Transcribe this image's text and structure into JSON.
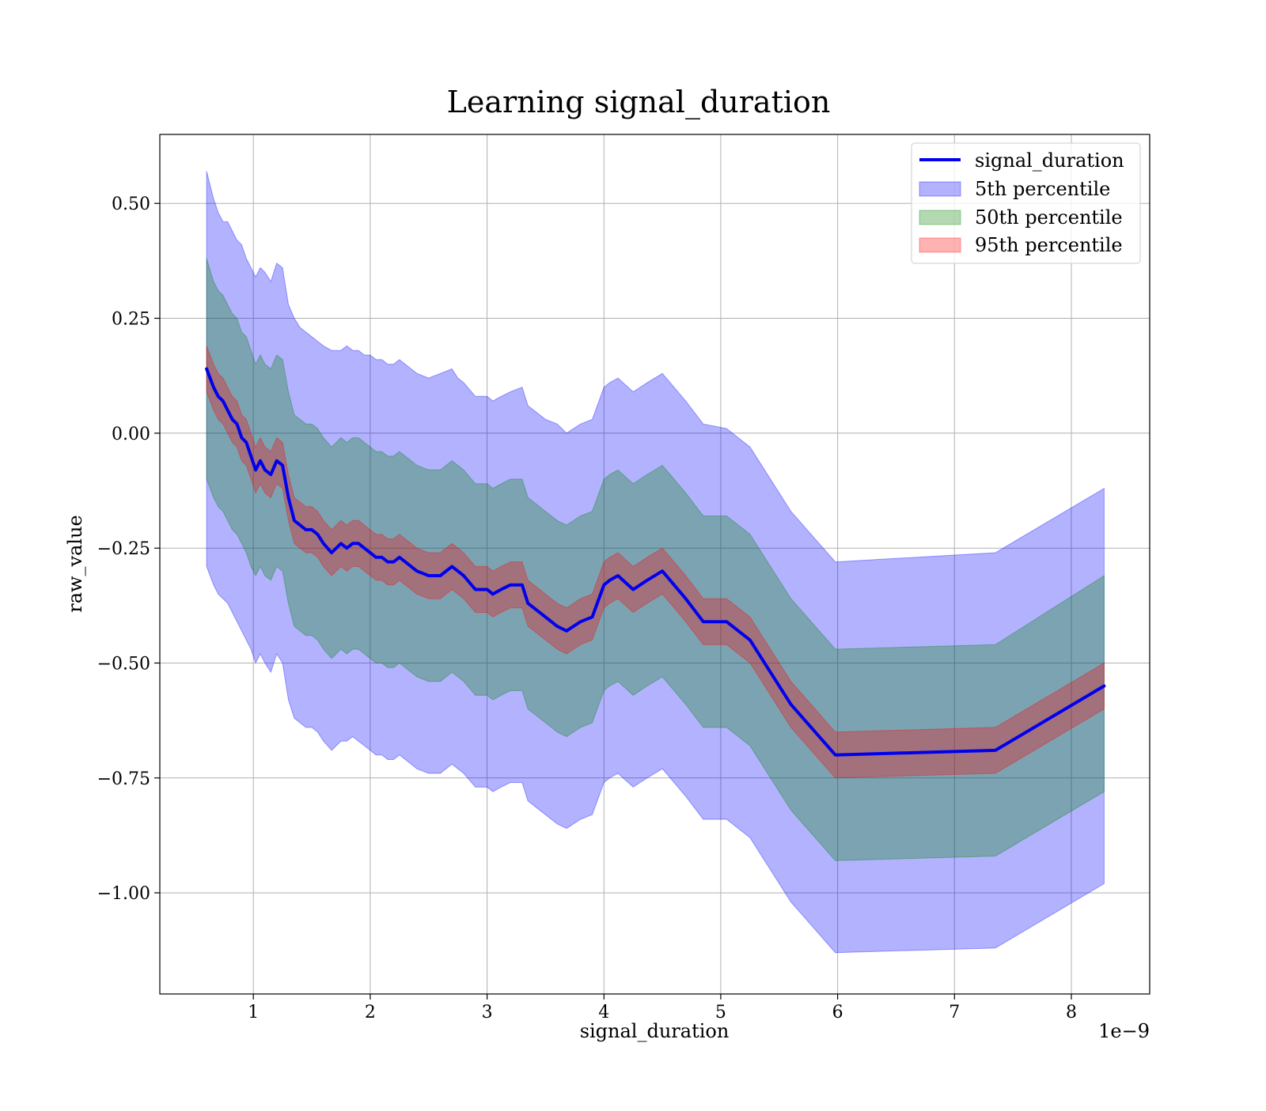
{
  "chart_data": {
    "type": "line",
    "title": "Learning signal_duration",
    "xlabel": "signal_duration",
    "ylabel": "raw_value",
    "x_offset_label": "1e−9",
    "xlim": [
      0.2,
      8.67
    ],
    "ylim": [
      -1.22,
      0.65
    ],
    "x_ticks": [
      1,
      2,
      3,
      4,
      5,
      6,
      7,
      8
    ],
    "x_tick_labels": [
      "1",
      "2",
      "3",
      "4",
      "5",
      "6",
      "7",
      "8"
    ],
    "y_ticks": [
      0.5,
      0.25,
      0.0,
      -0.25,
      -0.5,
      -0.75,
      -1.0
    ],
    "y_tick_labels": [
      "0.50",
      "0.25",
      "0.00",
      "−0.25",
      "−0.50",
      "−0.75",
      "−1.00"
    ],
    "grid": true,
    "legend_position": "top-right",
    "x": [
      0.6,
      0.66,
      0.7,
      0.74,
      0.78,
      0.82,
      0.86,
      0.9,
      0.94,
      0.98,
      1.02,
      1.06,
      1.1,
      1.15,
      1.2,
      1.25,
      1.3,
      1.35,
      1.4,
      1.45,
      1.5,
      1.55,
      1.6,
      1.67,
      1.75,
      1.8,
      1.85,
      1.9,
      1.95,
      2.0,
      2.05,
      2.1,
      2.15,
      2.2,
      2.25,
      2.3,
      2.35,
      2.4,
      2.5,
      2.6,
      2.7,
      2.75,
      2.8,
      2.9,
      2.95,
      3.0,
      3.05,
      3.12,
      3.2,
      3.3,
      3.35,
      3.4,
      3.5,
      3.6,
      3.68,
      3.8,
      3.9,
      4.0,
      4.05,
      4.12,
      4.25,
      4.37,
      4.5,
      4.6,
      4.7,
      4.85,
      5.05,
      5.25,
      5.45,
      5.6,
      5.98,
      7.35,
      8.28
    ],
    "series": [
      {
        "name": "signal_duration",
        "color": "#0000ee",
        "values": [
          0.14,
          0.1,
          0.08,
          0.07,
          0.05,
          0.03,
          0.02,
          -0.01,
          -0.02,
          -0.05,
          -0.08,
          -0.06,
          -0.08,
          -0.09,
          -0.06,
          -0.07,
          -0.14,
          -0.19,
          -0.2,
          -0.21,
          -0.21,
          -0.22,
          -0.24,
          -0.26,
          -0.24,
          -0.25,
          -0.24,
          -0.24,
          -0.25,
          -0.26,
          -0.27,
          -0.27,
          -0.28,
          -0.28,
          -0.27,
          -0.28,
          -0.29,
          -0.3,
          -0.31,
          -0.31,
          -0.29,
          -0.3,
          -0.31,
          -0.34,
          -0.34,
          -0.34,
          -0.35,
          -0.34,
          -0.33,
          -0.33,
          -0.37,
          -0.38,
          -0.4,
          -0.42,
          -0.43,
          -0.41,
          -0.4,
          -0.33,
          -0.32,
          -0.31,
          -0.34,
          -0.32,
          -0.3,
          -0.33,
          -0.36,
          -0.41,
          -0.41,
          -0.45,
          -0.53,
          -0.59,
          -0.7,
          -0.69,
          -0.55
        ]
      },
      {
        "name": "5th percentile",
        "color": "#0000ff",
        "opacity": 0.3,
        "upper": [
          0.57,
          0.51,
          0.48,
          0.46,
          0.46,
          0.44,
          0.42,
          0.41,
          0.38,
          0.36,
          0.34,
          0.36,
          0.35,
          0.33,
          0.37,
          0.36,
          0.28,
          0.25,
          0.23,
          0.22,
          0.21,
          0.2,
          0.19,
          0.18,
          0.18,
          0.19,
          0.18,
          0.18,
          0.17,
          0.17,
          0.16,
          0.16,
          0.15,
          0.15,
          0.16,
          0.15,
          0.14,
          0.13,
          0.12,
          0.13,
          0.14,
          0.12,
          0.11,
          0.08,
          0.08,
          0.08,
          0.07,
          0.08,
          0.09,
          0.1,
          0.06,
          0.05,
          0.03,
          0.02,
          0.0,
          0.02,
          0.03,
          0.1,
          0.11,
          0.12,
          0.09,
          0.11,
          0.13,
          0.1,
          0.07,
          0.02,
          0.01,
          -0.03,
          -0.11,
          -0.17,
          -0.28,
          -0.26,
          -0.12
        ],
        "lower": [
          -0.29,
          -0.33,
          -0.35,
          -0.36,
          -0.37,
          -0.39,
          -0.41,
          -0.43,
          -0.45,
          -0.47,
          -0.5,
          -0.48,
          -0.5,
          -0.52,
          -0.48,
          -0.5,
          -0.58,
          -0.62,
          -0.63,
          -0.64,
          -0.64,
          -0.65,
          -0.67,
          -0.69,
          -0.67,
          -0.67,
          -0.66,
          -0.67,
          -0.68,
          -0.69,
          -0.7,
          -0.7,
          -0.71,
          -0.71,
          -0.7,
          -0.71,
          -0.72,
          -0.73,
          -0.74,
          -0.74,
          -0.72,
          -0.73,
          -0.74,
          -0.77,
          -0.77,
          -0.77,
          -0.78,
          -0.77,
          -0.76,
          -0.76,
          -0.8,
          -0.81,
          -0.83,
          -0.85,
          -0.86,
          -0.84,
          -0.83,
          -0.76,
          -0.75,
          -0.74,
          -0.77,
          -0.75,
          -0.73,
          -0.76,
          -0.79,
          -0.84,
          -0.84,
          -0.88,
          -0.96,
          -1.02,
          -1.13,
          -1.12,
          -0.98
        ]
      },
      {
        "name": "50th percentile",
        "color": "#008000",
        "opacity": 0.3,
        "upper": [
          0.38,
          0.33,
          0.31,
          0.3,
          0.28,
          0.26,
          0.25,
          0.22,
          0.21,
          0.18,
          0.15,
          0.17,
          0.15,
          0.14,
          0.17,
          0.16,
          0.09,
          0.04,
          0.03,
          0.02,
          0.02,
          0.01,
          -0.01,
          -0.03,
          -0.01,
          -0.02,
          -0.01,
          -0.01,
          -0.02,
          -0.03,
          -0.04,
          -0.04,
          -0.05,
          -0.05,
          -0.04,
          -0.05,
          -0.06,
          -0.07,
          -0.08,
          -0.08,
          -0.06,
          -0.07,
          -0.08,
          -0.11,
          -0.11,
          -0.11,
          -0.12,
          -0.11,
          -0.1,
          -0.1,
          -0.14,
          -0.15,
          -0.17,
          -0.19,
          -0.2,
          -0.18,
          -0.17,
          -0.1,
          -0.09,
          -0.08,
          -0.11,
          -0.09,
          -0.07,
          -0.1,
          -0.13,
          -0.18,
          -0.18,
          -0.22,
          -0.3,
          -0.36,
          -0.47,
          -0.46,
          -0.31
        ],
        "lower": [
          -0.1,
          -0.14,
          -0.16,
          -0.17,
          -0.19,
          -0.21,
          -0.22,
          -0.24,
          -0.26,
          -0.29,
          -0.31,
          -0.29,
          -0.31,
          -0.32,
          -0.29,
          -0.3,
          -0.37,
          -0.42,
          -0.43,
          -0.44,
          -0.44,
          -0.45,
          -0.47,
          -0.49,
          -0.47,
          -0.48,
          -0.47,
          -0.47,
          -0.48,
          -0.49,
          -0.5,
          -0.5,
          -0.51,
          -0.51,
          -0.5,
          -0.51,
          -0.52,
          -0.53,
          -0.54,
          -0.54,
          -0.52,
          -0.53,
          -0.54,
          -0.57,
          -0.57,
          -0.57,
          -0.58,
          -0.57,
          -0.56,
          -0.56,
          -0.6,
          -0.61,
          -0.63,
          -0.65,
          -0.66,
          -0.64,
          -0.63,
          -0.56,
          -0.55,
          -0.54,
          -0.57,
          -0.55,
          -0.53,
          -0.56,
          -0.59,
          -0.64,
          -0.64,
          -0.68,
          -0.76,
          -0.82,
          -0.93,
          -0.92,
          -0.78
        ]
      },
      {
        "name": "95th percentile",
        "color": "#ff0000",
        "opacity": 0.3,
        "upper": [
          0.19,
          0.15,
          0.13,
          0.12,
          0.1,
          0.08,
          0.07,
          0.04,
          0.03,
          0.0,
          -0.03,
          -0.01,
          -0.03,
          -0.04,
          -0.01,
          -0.02,
          -0.09,
          -0.14,
          -0.15,
          -0.16,
          -0.16,
          -0.17,
          -0.19,
          -0.21,
          -0.19,
          -0.2,
          -0.19,
          -0.19,
          -0.2,
          -0.21,
          -0.22,
          -0.22,
          -0.23,
          -0.23,
          -0.22,
          -0.23,
          -0.24,
          -0.25,
          -0.26,
          -0.26,
          -0.24,
          -0.25,
          -0.26,
          -0.29,
          -0.29,
          -0.29,
          -0.3,
          -0.29,
          -0.28,
          -0.28,
          -0.32,
          -0.33,
          -0.35,
          -0.37,
          -0.38,
          -0.36,
          -0.35,
          -0.28,
          -0.27,
          -0.26,
          -0.29,
          -0.27,
          -0.25,
          -0.28,
          -0.31,
          -0.36,
          -0.36,
          -0.4,
          -0.48,
          -0.54,
          -0.65,
          -0.64,
          -0.5
        ],
        "lower": [
          0.09,
          0.05,
          0.03,
          0.02,
          0.0,
          -0.02,
          -0.03,
          -0.06,
          -0.07,
          -0.1,
          -0.13,
          -0.11,
          -0.13,
          -0.14,
          -0.11,
          -0.12,
          -0.19,
          -0.24,
          -0.25,
          -0.26,
          -0.26,
          -0.27,
          -0.29,
          -0.31,
          -0.29,
          -0.3,
          -0.29,
          -0.29,
          -0.3,
          -0.31,
          -0.32,
          -0.32,
          -0.33,
          -0.33,
          -0.32,
          -0.33,
          -0.34,
          -0.35,
          -0.36,
          -0.36,
          -0.34,
          -0.35,
          -0.36,
          -0.39,
          -0.39,
          -0.39,
          -0.4,
          -0.39,
          -0.38,
          -0.38,
          -0.42,
          -0.43,
          -0.45,
          -0.47,
          -0.48,
          -0.46,
          -0.45,
          -0.38,
          -0.37,
          -0.36,
          -0.39,
          -0.37,
          -0.35,
          -0.38,
          -0.41,
          -0.46,
          -0.46,
          -0.5,
          -0.58,
          -0.64,
          -0.75,
          -0.74,
          -0.6
        ]
      }
    ]
  }
}
